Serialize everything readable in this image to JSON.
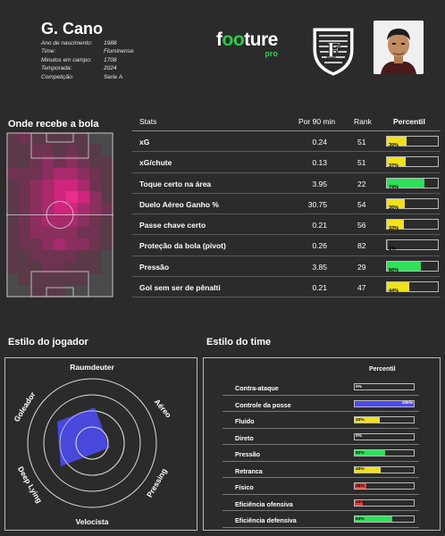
{
  "player": {
    "name": "G. Cano",
    "info": [
      {
        "label": "Ano de nascimento:",
        "value": "1988"
      },
      {
        "label": "Time:",
        "value": "Fluminense"
      },
      {
        "label": "Minutos em campo:",
        "value": "1708"
      },
      {
        "label": "Temporada:",
        "value": "2024"
      },
      {
        "label": "Competição:",
        "value": "Serie A"
      }
    ]
  },
  "brand": {
    "pre": "f",
    "oo": "oo",
    "post": "ture",
    "pro": "pro"
  },
  "heatmap": {
    "title": "Onde recebe a bola"
  },
  "stats": {
    "headers": {
      "stats": "Stats",
      "p90": "Por 90 min",
      "rank": "Rank",
      "percentile": "Percentil"
    },
    "rows": [
      {
        "name": "xG",
        "p90": "0.24",
        "rank": "51",
        "pct": "39%",
        "pct_value": 39,
        "color": "#f0e11c"
      },
      {
        "name": "xG/chute",
        "p90": "0.13",
        "rank": "51",
        "pct": "37%",
        "pct_value": 37,
        "color": "#f0e11c"
      },
      {
        "name": "Toque certo na área",
        "p90": "3.95",
        "rank": "22",
        "pct": "74%",
        "pct_value": 74,
        "color": "#2ee05a"
      },
      {
        "name": "Duelo Aéreo Ganho %",
        "p90": "30.75",
        "rank": "54",
        "pct": "35%",
        "pct_value": 35,
        "color": "#f0e11c"
      },
      {
        "name": "Passe chave certo",
        "p90": "0.21",
        "rank": "56",
        "pct": "33%",
        "pct_value": 33,
        "color": "#f0e11c"
      },
      {
        "name": "Proteção da bola (pivot)",
        "p90": "0.26",
        "rank": "82",
        "pct": "1%",
        "pct_value": 1,
        "color": "#e83b3b"
      },
      {
        "name": "Pressão",
        "p90": "3.85",
        "rank": "29",
        "pct": "66%",
        "pct_value": 66,
        "color": "#2ee05a"
      },
      {
        "name": "Gol sem ser de pênalti",
        "p90": "0.21",
        "rank": "47",
        "pct": "44%",
        "pct_value": 44,
        "color": "#f0e11c"
      }
    ]
  },
  "player_style": {
    "title": "Estilo do jogador",
    "labels": {
      "top": "Raumdeuter",
      "top_right": "Aéreo",
      "right": "Pressing",
      "bottom": "Velocista",
      "left": "Deep Lying",
      "top_left": "Goleador"
    }
  },
  "team_style": {
    "title": "Estilo do time",
    "header": "Percentil",
    "rows": [
      {
        "name": "Contra-ataque",
        "pct": "0%",
        "pct_value": 0,
        "color": "#2b2b2b"
      },
      {
        "name": "Controle da posse",
        "pct": "100%",
        "pct_value": 100,
        "color": "#4b4bf0"
      },
      {
        "name": "Fluido",
        "pct": "43%",
        "pct_value": 43,
        "color": "#f0e11c"
      },
      {
        "name": "Direto",
        "pct": "0%",
        "pct_value": 0,
        "color": "#2b2b2b"
      },
      {
        "name": "Pressão",
        "pct": "52%",
        "pct_value": 52,
        "color": "#2ee05a"
      },
      {
        "name": "Retranca",
        "pct": "44%",
        "pct_value": 44,
        "color": "#f0e11c"
      },
      {
        "name": "Físico",
        "pct": "20%",
        "pct_value": 20,
        "color": "#e83b3b"
      },
      {
        "name": "Eficiência ofensiva",
        "pct": "13%",
        "pct_value": 13,
        "color": "#e83b3b"
      },
      {
        "name": "Eficiência defensiva",
        "pct": "64%",
        "pct_value": 64,
        "color": "#2ee05a"
      }
    ]
  }
}
